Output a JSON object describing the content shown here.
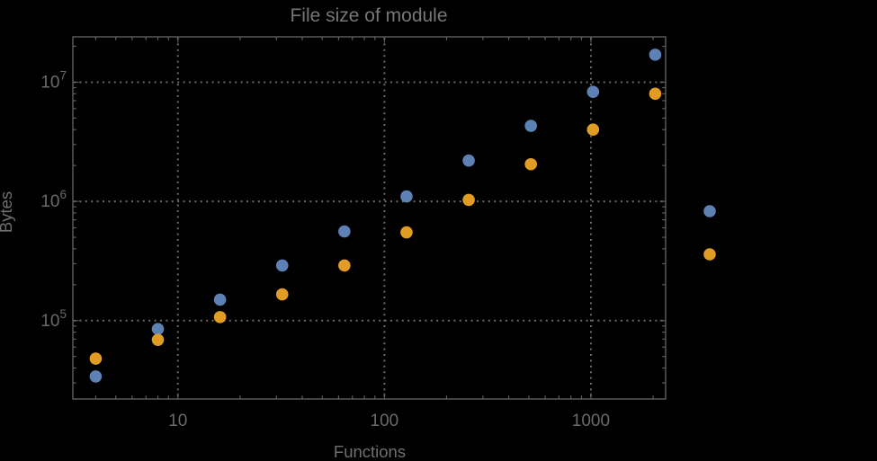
{
  "chart_data": {
    "type": "scatter",
    "title": "File size of module",
    "xlabel": "Functions",
    "ylabel": "Bytes",
    "x_scale": "log",
    "y_scale": "log",
    "xlim": [
      3.1,
      2300
    ],
    "ylim": [
      22000,
      24000000
    ],
    "x_major_ticks": [
      10,
      100,
      1000
    ],
    "x_major_tick_labels": [
      "10",
      "100",
      "1000"
    ],
    "y_major_ticks": [
      100000,
      1000000,
      10000000
    ],
    "y_major_tick_labels": [
      "10^5",
      "10^6",
      "10^7"
    ],
    "grid": {
      "style": "dotted",
      "at": "major-ticks"
    },
    "series": [
      {
        "name": "blue-series",
        "color": "#5e81b5",
        "points": [
          [
            4,
            34000
          ],
          [
            8,
            85000
          ],
          [
            16,
            150000
          ],
          [
            32,
            290000
          ],
          [
            64,
            560000
          ],
          [
            128,
            1100000
          ],
          [
            256,
            2200000
          ],
          [
            512,
            4300000
          ],
          [
            1024,
            8300000
          ],
          [
            2048,
            17000000
          ]
        ]
      },
      {
        "name": "orange-series",
        "color": "#e19c24",
        "points": [
          [
            4,
            48000
          ],
          [
            8,
            69000
          ],
          [
            16,
            107000
          ],
          [
            32,
            166000
          ],
          [
            64,
            290000
          ],
          [
            128,
            550000
          ],
          [
            256,
            1030000
          ],
          [
            512,
            2050000
          ],
          [
            1024,
            4000000
          ],
          [
            2048,
            8000000
          ]
        ]
      }
    ],
    "legend": {
      "position": "outside-right",
      "labels_visible": false,
      "markers": [
        {
          "series": "blue-series",
          "color": "#5e81b5"
        },
        {
          "series": "orange-series",
          "color": "#e19c24"
        }
      ]
    }
  },
  "colors": {
    "background": "#000000",
    "frame": "#5f5f5f",
    "grid": "#696969",
    "title_text": "#767676",
    "tick_text": "#6a6a6a",
    "axis_label_text": "#6f6f6f"
  },
  "marker": {
    "radius": 6.8
  }
}
